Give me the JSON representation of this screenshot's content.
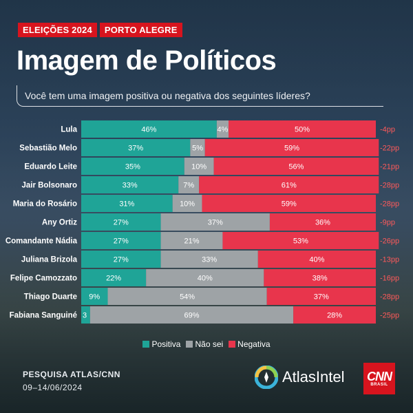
{
  "tags": [
    "ELEIÇÕES 2024",
    "PORTO ALEGRE"
  ],
  "title": "Imagem de Políticos",
  "question": "Você tem uma imagem positiva ou negativa dos seguintes líderes?",
  "colors": {
    "positiva": "#1fa497",
    "nao_sei": "#9ea3a6",
    "negativa": "#e8354c",
    "accent": "#d7141e",
    "balance": "#ff5a5a"
  },
  "chart_data": {
    "type": "bar",
    "orientation": "horizontal",
    "stacked": true,
    "categories": [
      "Lula",
      "Sebastião Melo",
      "Eduardo Leite",
      "Jair Bolsonaro",
      "Maria do Rosário",
      "Any Ortiz",
      "Comandante Nádia",
      "Juliana Brizola",
      "Felipe Camozzato",
      "Thiago Duarte",
      "Fabiana Sanguiné"
    ],
    "series": [
      {
        "name": "Positiva",
        "values": [
          46,
          37,
          35,
          33,
          31,
          27,
          27,
          27,
          22,
          9,
          3
        ],
        "labels": [
          "46%",
          "37%",
          "35%",
          "33%",
          "31%",
          "27%",
          "27%",
          "27%",
          "22%",
          "9%",
          "3"
        ]
      },
      {
        "name": "Não sei",
        "values": [
          4,
          5,
          10,
          7,
          10,
          37,
          21,
          33,
          40,
          54,
          69
        ],
        "labels": [
          "4%",
          "5%",
          "10%",
          "7%",
          "10%",
          "37%",
          "21%",
          "33%",
          "40%",
          "54%",
          "69%"
        ]
      },
      {
        "name": "Negativa",
        "values": [
          50,
          59,
          56,
          61,
          59,
          36,
          53,
          40,
          38,
          37,
          28
        ],
        "labels": [
          "50%",
          "59%",
          "56%",
          "61%",
          "59%",
          "36%",
          "53%",
          "40%",
          "38%",
          "37%",
          "28%"
        ]
      }
    ],
    "balance": [
      "-4pp",
      "-22pp",
      "-21pp",
      "-28pp",
      "-28pp",
      "-9pp",
      "-26pp",
      "-13pp",
      "-16pp",
      "-28pp",
      "-25pp"
    ],
    "legend_position": "bottom",
    "grid": false
  },
  "source": "PESQUISA ATLAS/CNN",
  "dates": "09–14/06/2024",
  "logos": {
    "atlas": "AtlasIntel",
    "cnn": "CNN",
    "cnn_sub": "BRASIL"
  }
}
